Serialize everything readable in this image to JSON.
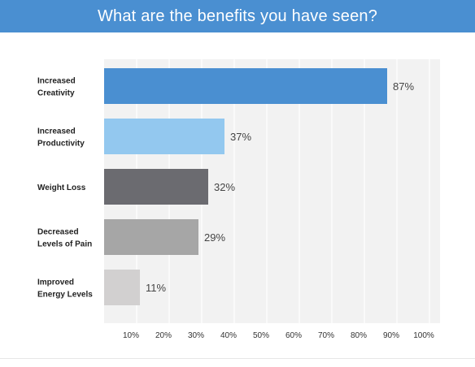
{
  "header": {
    "title": "What are the benefits you have seen?"
  },
  "colors": {
    "header_bg": "#4a8fd1",
    "plot_bg": "#f2f2f2",
    "grid": "#ffffff"
  },
  "chart_data": {
    "type": "bar",
    "orientation": "horizontal",
    "categories": [
      [
        "Increased",
        "Creativity"
      ],
      [
        "Increased",
        "Productivity"
      ],
      [
        "Weight Loss"
      ],
      [
        "Decreased",
        "Levels of Pain"
      ],
      [
        "Improved",
        "Energy Levels"
      ]
    ],
    "values": [
      87,
      37,
      32,
      29,
      11
    ],
    "value_labels": [
      "87%",
      "37%",
      "32%",
      "29%",
      "11%"
    ],
    "bar_colors": [
      "#4a8fd1",
      "#93c8ef",
      "#6b6b70",
      "#a6a6a6",
      "#d2d0d0"
    ],
    "x_ticks": [
      "10%",
      "20%",
      "30%",
      "40%",
      "50%",
      "60%",
      "70%",
      "80%",
      "90%",
      "100%"
    ],
    "xlim": [
      0,
      100
    ],
    "grid": true,
    "legend": false
  }
}
